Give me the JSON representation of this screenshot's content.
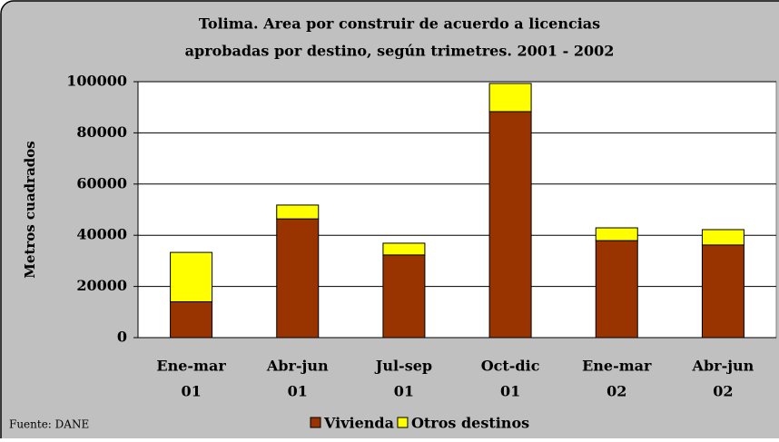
{
  "chart_data": {
    "type": "stacked_bar",
    "title": [
      "Tolima. Area por construir de acuerdo a licencias",
      "aprobadas por destino, según trimetres. 2001 - 2002"
    ],
    "y_label": "Metros cuadrados",
    "source": "Fuente: DANE",
    "categories": [
      [
        "Ene-mar",
        "01"
      ],
      [
        "Abr-jun",
        "01"
      ],
      [
        "Jul-sep",
        "01"
      ],
      [
        "Oct-dic",
        "01"
      ],
      [
        "Ene-mar",
        "02"
      ],
      [
        "Abr-jun",
        "02"
      ]
    ],
    "series": [
      {
        "name": "Vivienda",
        "color": "#993300",
        "values": [
          14000,
          46400,
          32300,
          88300,
          37900,
          36200
        ]
      },
      {
        "name": "Otros destinos",
        "color": "#ffff00",
        "values": [
          19300,
          5400,
          4600,
          11000,
          5000,
          6000
        ]
      }
    ],
    "ylim": [
      0,
      100000
    ],
    "yticks": [
      0,
      20000,
      40000,
      60000,
      80000,
      100000
    ],
    "grid": true,
    "legend": "bottom"
  }
}
